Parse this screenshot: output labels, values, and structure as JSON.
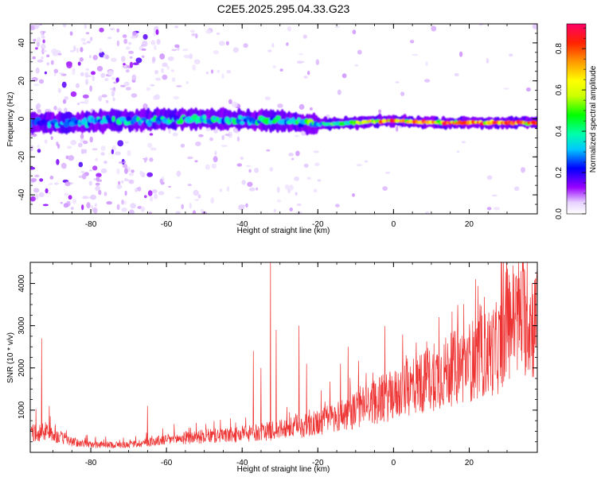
{
  "title": "C2E5.2025.295.04.33.G23",
  "chart_data": [
    {
      "type": "heatmap",
      "xlabel": "Height of straight line (km)",
      "ylabel": "Frequency (Hz)",
      "xlim": [
        -96,
        38
      ],
      "ylim": [
        -50,
        50
      ],
      "xticks": [
        -80,
        -60,
        -40,
        -20,
        0,
        20
      ],
      "yticks": [
        -40,
        -20,
        0,
        20,
        40
      ],
      "colorbar": {
        "label": "Normalized spectral amplitude",
        "range": [
          0,
          0.92
        ],
        "ticks": [
          0.0,
          0.2,
          0.4,
          0.6,
          0.8
        ]
      },
      "dominant_band": {
        "description_points": [
          {
            "x": -95,
            "freq": -2,
            "amp": 0.18
          },
          {
            "x": -85,
            "freq": -2,
            "amp": 0.25
          },
          {
            "x": -75,
            "freq": -1,
            "amp": 0.3
          },
          {
            "x": -60,
            "freq": 0,
            "amp": 0.35
          },
          {
            "x": -45,
            "freq": 0,
            "amp": 0.35
          },
          {
            "x": -30,
            "freq": -1,
            "amp": 0.35
          },
          {
            "x": -20,
            "freq": -3,
            "amp": 0.45
          },
          {
            "x": -10,
            "freq": -2,
            "amp": 0.6
          },
          {
            "x": 0,
            "freq": -1,
            "amp": 0.9
          },
          {
            "x": 10,
            "freq": -2,
            "amp": 0.85
          },
          {
            "x": 20,
            "freq": -2,
            "amp": 0.88
          },
          {
            "x": 30,
            "freq": -2,
            "amp": 0.9
          },
          {
            "x": 37,
            "freq": -2,
            "amp": 0.85
          }
        ]
      }
    },
    {
      "type": "line",
      "xlabel": "Height of straight line (km)",
      "ylabel": "SNR (10 * v/v)",
      "xlim": [
        -96,
        38
      ],
      "ylim": [
        0,
        4500
      ],
      "xticks": [
        -80,
        -60,
        -40,
        -20,
        0,
        20
      ],
      "yticks": [
        1000,
        2000,
        3000,
        4000
      ],
      "series": [
        {
          "color": "#ee3333",
          "trend": [
            {
              "x": -96,
              "y": 450
            },
            {
              "x": -92,
              "y": 500
            },
            {
              "x": -90,
              "y": 420
            },
            {
              "x": -85,
              "y": 250
            },
            {
              "x": -80,
              "y": 180
            },
            {
              "x": -70,
              "y": 180
            },
            {
              "x": -60,
              "y": 300
            },
            {
              "x": -50,
              "y": 380
            },
            {
              "x": -40,
              "y": 420
            },
            {
              "x": -33,
              "y": 500
            },
            {
              "x": -25,
              "y": 600
            },
            {
              "x": -20,
              "y": 700
            },
            {
              "x": -15,
              "y": 850
            },
            {
              "x": -10,
              "y": 1000
            },
            {
              "x": -5,
              "y": 1200
            },
            {
              "x": 0,
              "y": 1350
            },
            {
              "x": 5,
              "y": 1550
            },
            {
              "x": 10,
              "y": 1750
            },
            {
              "x": 15,
              "y": 1950
            },
            {
              "x": 20,
              "y": 2150
            },
            {
              "x": 25,
              "y": 2350
            },
            {
              "x": 28,
              "y": 2500
            },
            {
              "x": 30,
              "y": 3100
            },
            {
              "x": 34,
              "y": 3250
            },
            {
              "x": 38,
              "y": 3000
            }
          ],
          "spikes": [
            {
              "x": -93,
              "y": 2700
            },
            {
              "x": -91,
              "y": 1100
            },
            {
              "x": -65,
              "y": 1100
            },
            {
              "x": -37,
              "y": 2400
            },
            {
              "x": -35,
              "y": 2000
            },
            {
              "x": -32.5,
              "y": 4500
            },
            {
              "x": -31,
              "y": 2900
            },
            {
              "x": -25,
              "y": 3000
            },
            {
              "x": -23,
              "y": 2100
            },
            {
              "x": -14,
              "y": 2100
            },
            {
              "x": -12,
              "y": 2500
            },
            {
              "x": 6,
              "y": 2600
            },
            {
              "x": 7,
              "y": 2300
            },
            {
              "x": 12,
              "y": 3200
            },
            {
              "x": 22,
              "y": 2500
            },
            {
              "x": 31,
              "y": 3800
            },
            {
              "x": 33,
              "y": 3700
            }
          ]
        }
      ]
    }
  ]
}
